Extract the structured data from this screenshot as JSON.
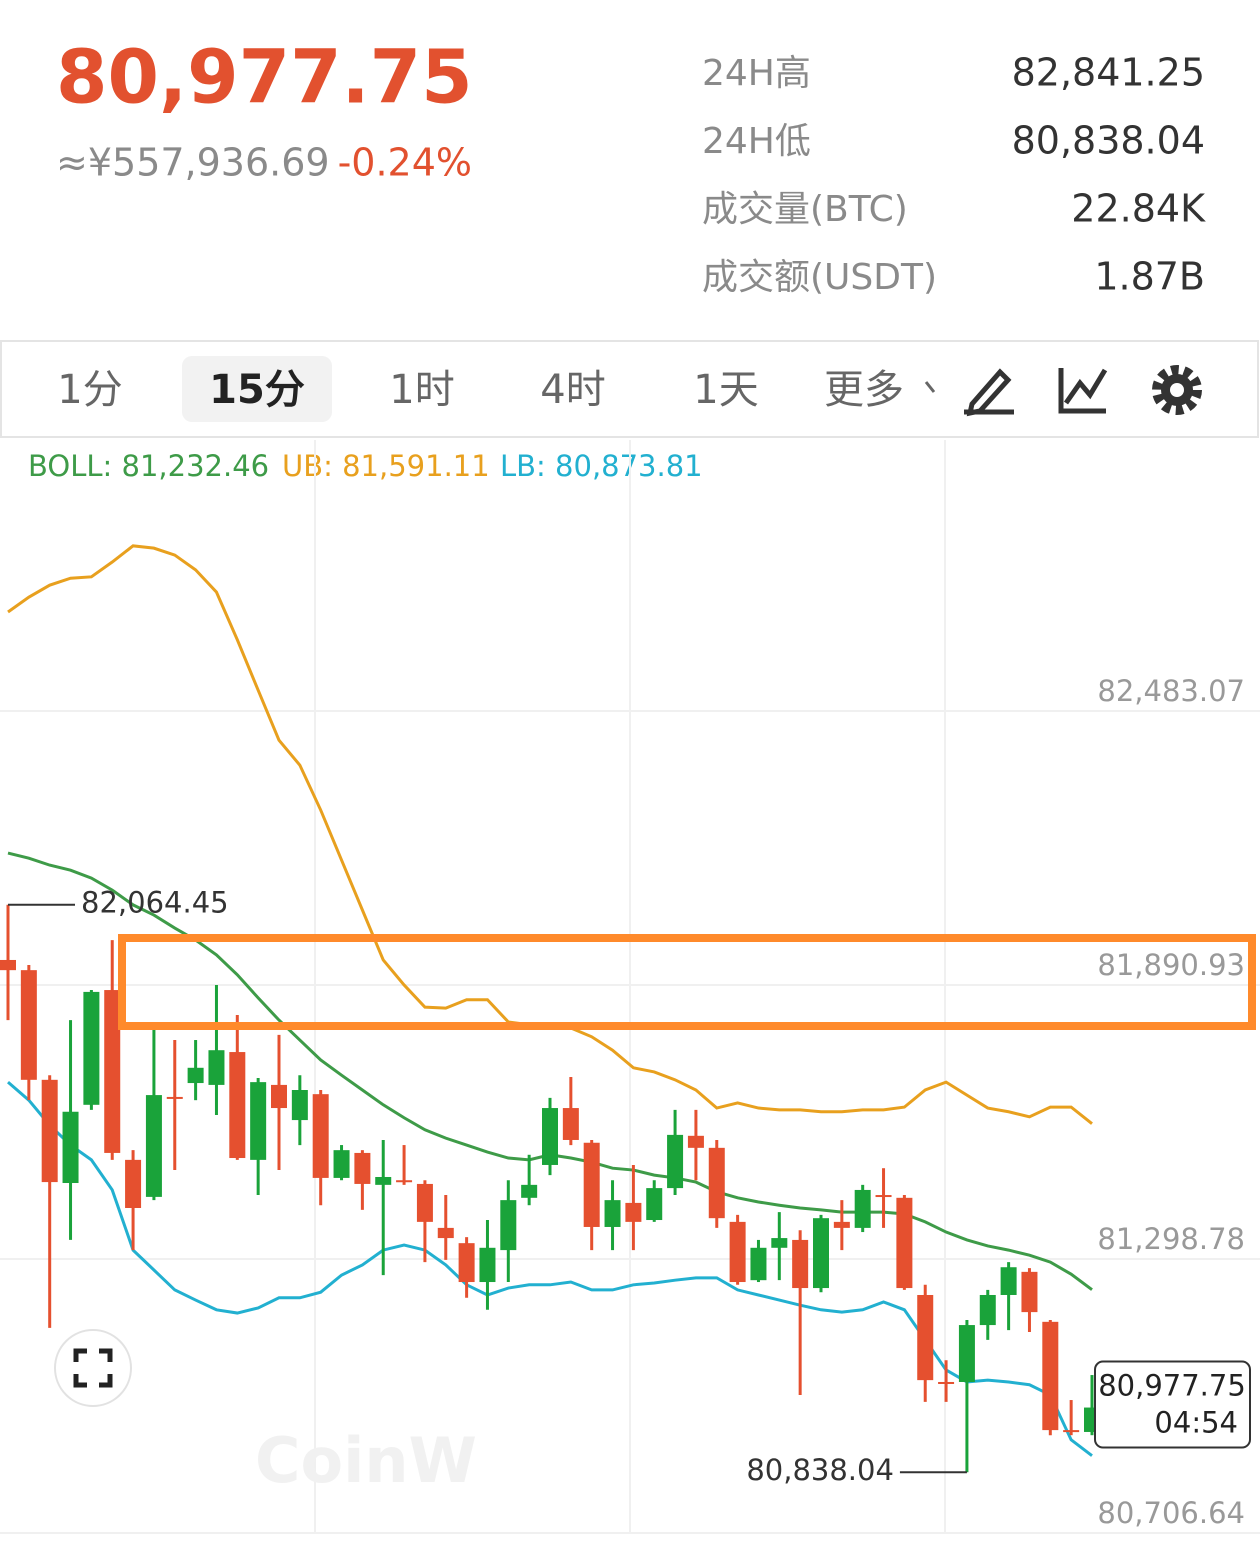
{
  "header": {
    "price": "80,977.75",
    "cny": "≈¥557,936.69",
    "change": "-0.24%",
    "stats": [
      {
        "label": "24H高",
        "value": "82,841.25"
      },
      {
        "label": "24H低",
        "value": "80,838.04"
      },
      {
        "label": "成交量(BTC)",
        "value": "22.84K"
      },
      {
        "label": "成交额(USDT)",
        "value": "1.87B"
      }
    ]
  },
  "tabs": {
    "items": [
      "1分",
      "15分",
      "1时",
      "4时",
      "1天",
      "更多"
    ],
    "selected": 1
  },
  "chart_data": {
    "type": "candlestick",
    "up_color": "#1aa33a",
    "down_color": "#e5502f",
    "grid": true,
    "ylim": [
      80706.64,
      83068.7
    ],
    "yticks": [
      {
        "value": 80706.64,
        "label": "80,706.64"
      },
      {
        "value": 81298.78,
        "label": "81,298.78"
      },
      {
        "value": 81890.93,
        "label": "81,890.93"
      },
      {
        "value": 82483.07,
        "label": "82,483.07"
      }
    ],
    "open": [
      81945,
      81923,
      81686,
      81463,
      81632,
      81880,
      81513,
      81433,
      81649,
      81679,
      81675,
      81746,
      81513,
      81675,
      81599,
      81655,
      81474,
      81528,
      81459,
      81469,
      81461,
      81366,
      81333,
      81249,
      81318,
      81431,
      81502,
      81625,
      81550,
      81368,
      81420,
      81383,
      81452,
      81565,
      81539,
      81379,
      81253,
      81323,
      81340,
      81236,
      81379,
      81366,
      81437,
      81431,
      81221,
      81033,
      81033,
      81156,
      81221,
      81271,
      81163,
      80929,
      80925
    ],
    "high": [
      82064.45,
      81934,
      81696,
      81815,
      81880,
      81988,
      81534,
      81794,
      81772,
      81772,
      81891,
      81826,
      81690,
      81783,
      81696,
      81664,
      81545,
      81534,
      81556,
      81545,
      81469,
      81437,
      81346,
      81383,
      81469,
      81524,
      81647,
      81692,
      81556,
      81469,
      81502,
      81469,
      81621,
      81621,
      81556,
      81394,
      81340,
      81400,
      81361,
      81394,
      81426,
      81459,
      81495,
      81437,
      81243,
      81080,
      81167,
      81232,
      81292,
      81279,
      81167,
      80994,
      81048
    ],
    "low": [
      81815,
      81642,
      81150,
      81340,
      81621,
      81513,
      81318,
      81426,
      81491,
      81642,
      81610,
      81513,
      81437,
      81491,
      81545,
      81415,
      81469,
      81405,
      81264,
      81459,
      81292,
      81297,
      81215,
      81189,
      81249,
      81415,
      81480,
      81545,
      81318,
      81318,
      81318,
      81379,
      81437,
      81469,
      81366,
      81243,
      81249,
      81253,
      81005,
      81227,
      81318,
      81357,
      81366,
      81232,
      80990,
      80990,
      80838.04,
      81124,
      81145,
      81141,
      80918,
      80918,
      80918
    ],
    "close": [
      81923,
      81686,
      81465,
      81617,
      81876,
      81528,
      81409,
      81653,
      81647,
      81712,
      81750,
      81517,
      81681,
      81625,
      81664,
      81474,
      81534,
      81461,
      81476,
      81465,
      81379,
      81344,
      81249,
      81323,
      81426,
      81459,
      81625,
      81556,
      81368,
      81426,
      81379,
      81452,
      81567,
      81539,
      81387,
      81249,
      81323,
      81344,
      81236,
      81387,
      81366,
      81448,
      81433,
      81236,
      81037,
      81031,
      81156,
      81221,
      81281,
      81184,
      80929,
      80925,
      80977.75
    ],
    "bands": [
      {
        "label": "BOLL: 81,232.46",
        "color": "#3e9b48",
        "values": [
          82176,
          82165,
          82150,
          82139,
          82122,
          82096,
          82064,
          82042,
          82014,
          81988,
          81956,
          81913,
          81863,
          81815,
          81772,
          81729,
          81696,
          81664,
          81632,
          81604,
          81578,
          81560,
          81545,
          81530,
          81517,
          81513,
          81524,
          81517,
          81508,
          81495,
          81491,
          81480,
          81474,
          81465,
          81444,
          81431,
          81422,
          81415,
          81409,
          81405,
          81400,
          81400,
          81400,
          81396,
          81379,
          81357,
          81340,
          81327,
          81318,
          81307,
          81292,
          81266,
          81232.46
        ]
      },
      {
        "label": "UB: 81,591.11",
        "color": "#e8a01e",
        "values": [
          82697,
          82729,
          82755,
          82770,
          82773,
          82805,
          82840,
          82835,
          82820,
          82788,
          82740,
          82637,
          82528,
          82420,
          82366,
          82269,
          82161,
          82053,
          81945,
          81891,
          81843,
          81841,
          81859,
          81859,
          81811,
          81805,
          81805,
          81798,
          81779,
          81750,
          81712,
          81703,
          81686,
          81664,
          81625,
          81636,
          81625,
          81621,
          81621,
          81617,
          81617,
          81621,
          81621,
          81627,
          81664,
          81681,
          81653,
          81625,
          81617,
          81606,
          81627,
          81627,
          81591.11
        ]
      },
      {
        "label": "LB: 80,873.81",
        "color": "#22b0d0",
        "values": [
          81681,
          81642,
          81588,
          81545,
          81513,
          81448,
          81318,
          81275,
          81232,
          81210,
          81189,
          81182,
          81193,
          81215,
          81215,
          81227,
          81264,
          81286,
          81318,
          81329,
          81318,
          81286,
          81243,
          81221,
          81236,
          81243,
          81243,
          81249,
          81232,
          81232,
          81243,
          81247,
          81253,
          81258,
          81258,
          81232,
          81221,
          81210,
          81199,
          81189,
          81184,
          81189,
          81206,
          81189,
          81124,
          81059,
          81033,
          81037,
          81033,
          81027,
          81005,
          80908,
          80873.81
        ]
      }
    ],
    "annotations": [
      {
        "text": "82,064.45",
        "value": 82064.45,
        "index": 0
      },
      {
        "text": "80,838.04",
        "value": 80838.04,
        "index": 46
      }
    ],
    "last_label": {
      "value": 80977.75,
      "text": "80,977.75",
      "countdown": "04:54"
    },
    "watermark": "CoinW"
  }
}
